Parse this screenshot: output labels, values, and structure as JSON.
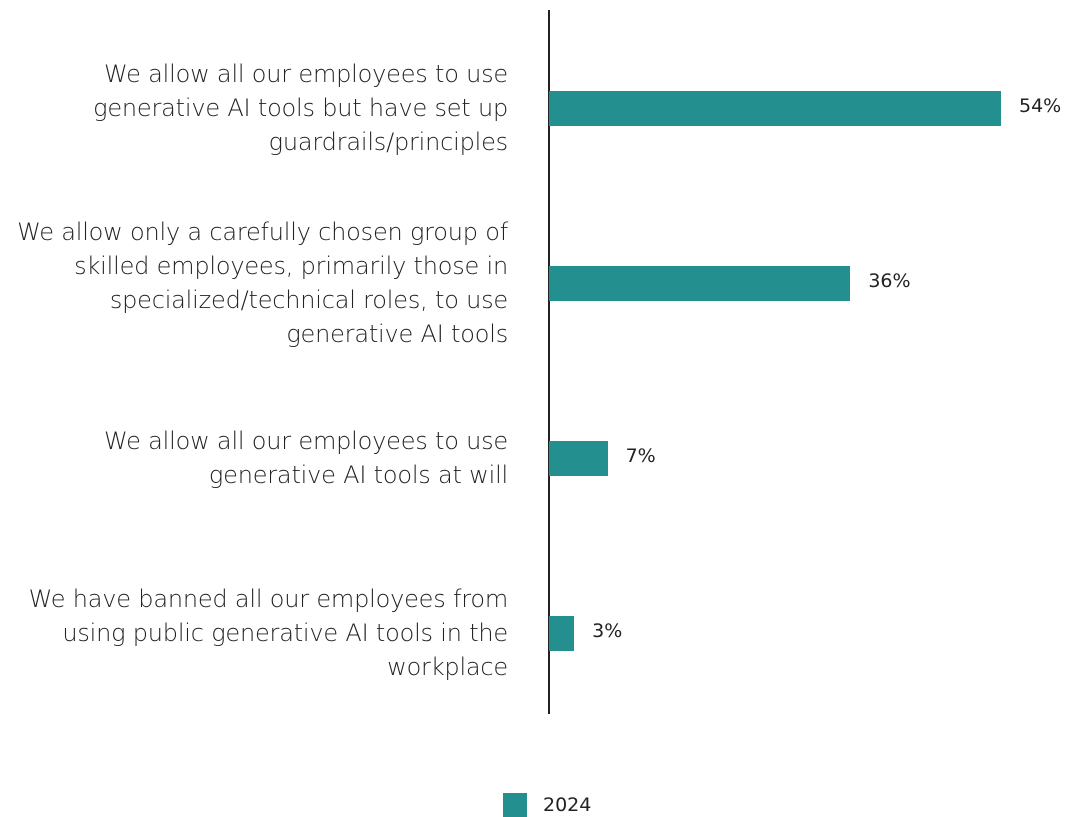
{
  "chart_data": {
    "type": "bar",
    "orientation": "horizontal",
    "categories": [
      "We allow all our employees to use generative AI tools but have set up guardrails/principles",
      "We allow only a carefully chosen group of skilled employees, primarily those in specialized/technical roles, to use generative AI tools",
      "We allow all our employees to use generative AI tools at will",
      "We have banned all our employees from using public generative AI tools in the workplace"
    ],
    "category_lines": [
      [
        "We allow all our employees to use",
        "generative AI tools but have set up",
        "guardrails/principles"
      ],
      [
        "We allow only a carefully chosen group of",
        "skilled employees, primarily those in",
        "specialized/technical roles, to use",
        "generative AI tools"
      ],
      [
        "We allow all our employees to use",
        "generative AI tools at will"
      ],
      [
        "We have banned all our employees from",
        "using public generative AI tools in the",
        "workplace"
      ]
    ],
    "series": [
      {
        "name": "2024",
        "values": [
          54,
          36,
          7,
          3
        ],
        "color": "#238f8f"
      }
    ],
    "data_labels": [
      "54%",
      "36%",
      "7%",
      "3%"
    ],
    "xlim": [
      0,
      60
    ],
    "grid": false,
    "legend_position": "bottom"
  },
  "legend": {
    "label": "2024",
    "color": "#238f8f"
  }
}
